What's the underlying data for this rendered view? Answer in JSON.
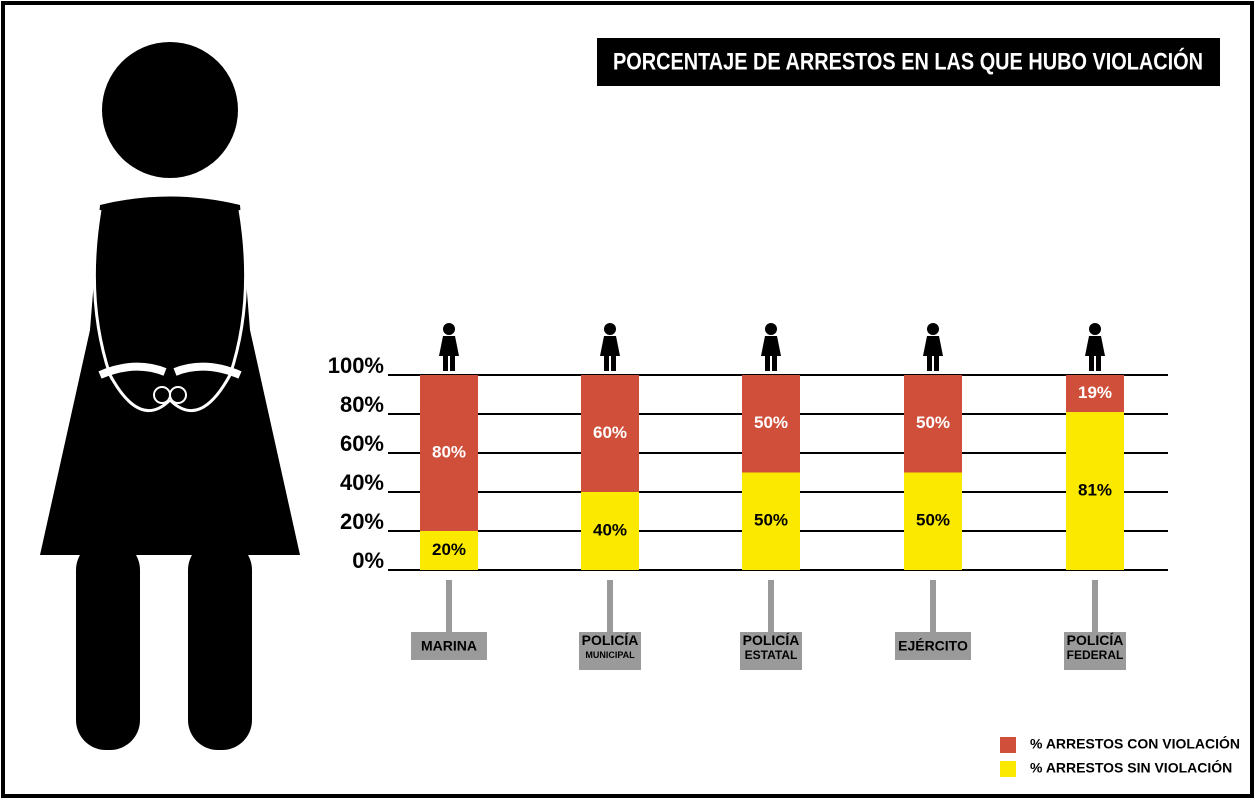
{
  "chart_data": {
    "type": "bar",
    "stacked": true,
    "title": "PORCENTAJE DE ARRESTOS EN LAS QUE HUBO VIOLACIÓN",
    "categories": [
      "MARINA",
      "POLICÍA MUNICIPAL",
      "POLICÍA ESTATAL",
      "EJÉRCITO",
      "POLICÍA FEDERAL"
    ],
    "series": [
      {
        "name": "% ARRESTOS CON VIOLACIÓN",
        "color": "#cf4f3a",
        "values": [
          80,
          60,
          50,
          50,
          19
        ],
        "value_labels": [
          "80%",
          "60%",
          "50%",
          "50%",
          "19%"
        ]
      },
      {
        "name": "% ARRESTOS SIN VIOLACIÓN",
        "color": "#fbea00",
        "values": [
          20,
          40,
          50,
          50,
          81
        ],
        "value_labels": [
          "20%",
          "40%",
          "50%",
          "50%",
          "81%"
        ]
      }
    ],
    "ylim": [
      0,
      100
    ],
    "yticks": [
      {
        "value": 0,
        "label": "0%"
      },
      {
        "value": 20,
        "label": "20%"
      },
      {
        "value": 40,
        "label": "40%"
      },
      {
        "value": 60,
        "label": "60%"
      },
      {
        "value": 80,
        "label": "80%"
      },
      {
        "value": 100,
        "label": "100%"
      }
    ],
    "grid": true,
    "legend": "bottom-right"
  }
}
